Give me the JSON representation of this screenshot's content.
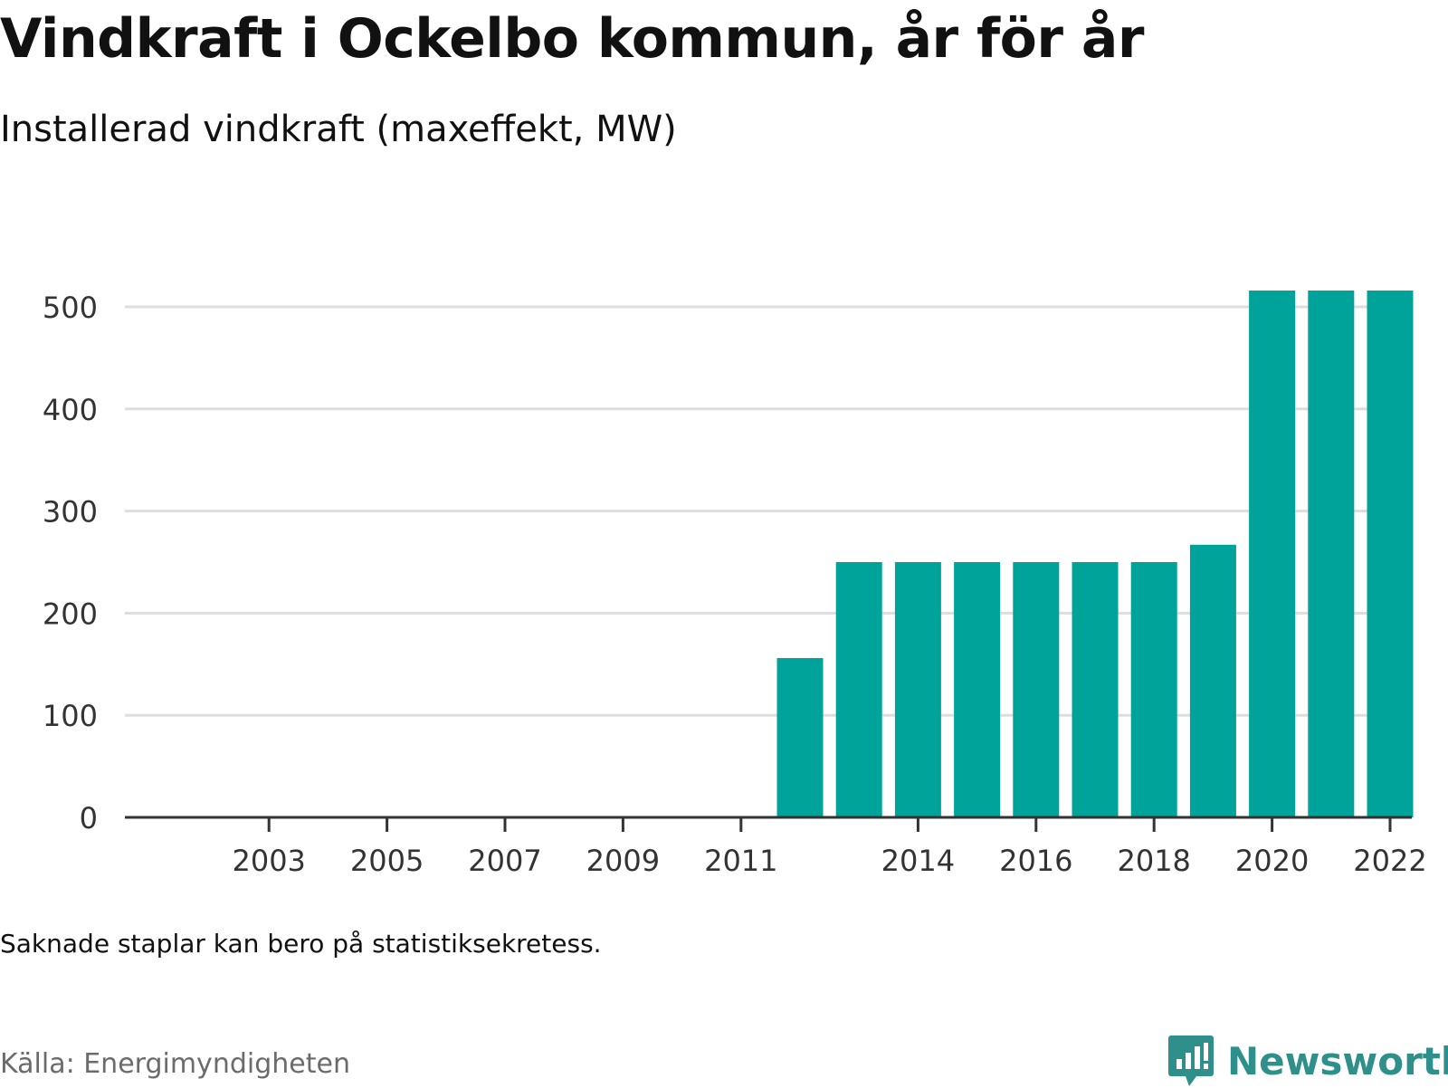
{
  "header": {
    "title": "Vindkraft i Ockelbo kommun, år för år",
    "subtitle": "Installerad vindkraft (maxeffekt, MW)"
  },
  "footer": {
    "note": "Saknade staplar kan bero på statistiksekretess.",
    "source": "Källa: Energimyndigheten",
    "brand": "Newsworthy",
    "brand_icon": "newsworthy-logo-icon"
  },
  "colors": {
    "bar": "#00a39a",
    "grid": "#dddddd",
    "axis": "#333333",
    "brand": "#2f8f8a"
  },
  "chart_data": {
    "type": "bar",
    "categories": [
      2002,
      2003,
      2004,
      2005,
      2006,
      2007,
      2008,
      2009,
      2010,
      2011,
      2012,
      2013,
      2014,
      2015,
      2016,
      2017,
      2018,
      2019,
      2020,
      2021,
      2022
    ],
    "values": [
      0,
      0,
      0,
      0,
      0,
      0,
      0,
      0,
      0,
      0,
      156,
      250,
      250,
      250,
      250,
      250,
      250,
      267,
      516,
      516,
      516
    ],
    "x_tick_labels": [
      "2003",
      "2005",
      "2007",
      "2009",
      "2011",
      "2014",
      "2016",
      "2018",
      "2020",
      "2022"
    ],
    "y_ticks": [
      0,
      100,
      200,
      300,
      400,
      500
    ],
    "ylim": [
      0,
      540
    ],
    "title": "Vindkraft i Ockelbo kommun, år för år",
    "ylabel": "",
    "xlabel": "",
    "grid": true,
    "legend": "none"
  }
}
